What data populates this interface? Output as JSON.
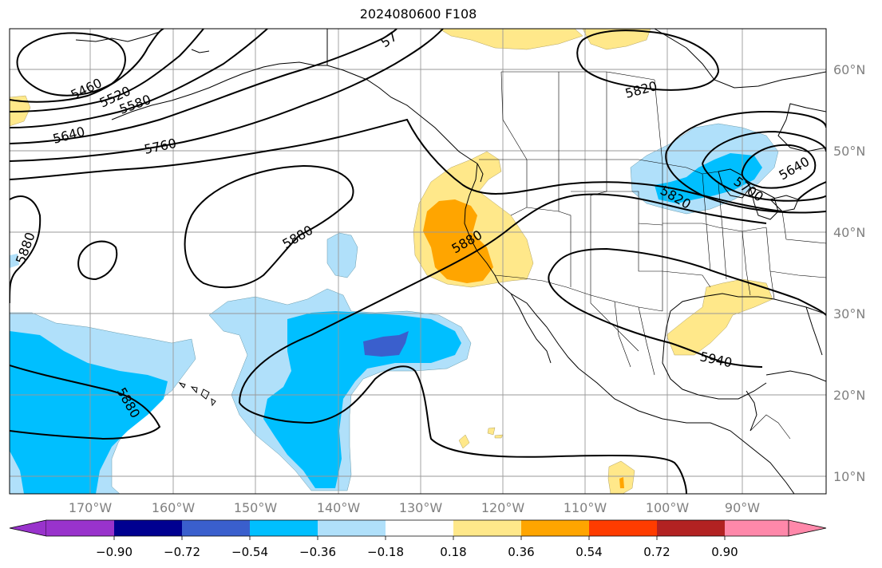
{
  "title": "2024080600 F108",
  "lat_labels": [
    "60°N",
    "50°N",
    "40°N",
    "30°N",
    "20°N",
    "10°N"
  ],
  "lon_labels": [
    "170°W",
    "160°W",
    "150°W",
    "140°W",
    "130°W",
    "120°W",
    "110°W",
    "100°W",
    "90°W"
  ],
  "contour_labels": [
    "5460",
    "5520",
    "5580",
    "5640",
    "5760",
    "5820",
    "5880",
    "5880",
    "5880",
    "5880",
    "5820",
    "5700",
    "5640",
    "5940",
    "57"
  ],
  "colorbar": {
    "tick_labels": [
      "−0.90",
      "−0.72",
      "−0.54",
      "−0.36",
      "−0.18",
      "0.18",
      "0.36",
      "0.54",
      "0.72",
      "0.90"
    ],
    "colors": [
      "#9933cc",
      "#000090",
      "#3a5fcd",
      "#00bfff",
      "#b0e0fa",
      "#ffffff",
      "#ffe88a",
      "#ffa500",
      "#ff3c00",
      "#b22222",
      "#ff88aa"
    ]
  }
}
